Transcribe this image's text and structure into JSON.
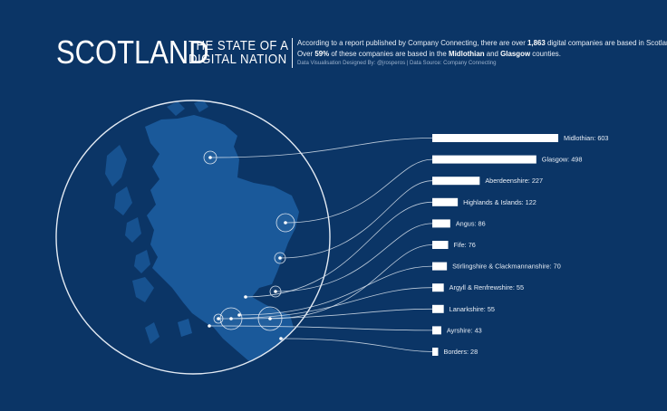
{
  "header": {
    "title_main": "SCOTLAND",
    "title_sub_line1": "THE STATE OF A",
    "title_sub_line2": "DIGITAL NATION",
    "desc_line1_pre": "According to a report published by Company Connecting, there are over ",
    "desc_line1_bold": "1,863",
    "desc_line1_post": " digital companies are based in Scotland.",
    "desc_line2_pre": "Over ",
    "desc_line2_bold1": "59%",
    "desc_line2_mid": " of these companies are based in the ",
    "desc_line2_bold2": "Midlothian",
    "desc_line2_and": " and ",
    "desc_line2_bold3": "Glasgow",
    "desc_line2_post": " counties.",
    "credit": "Data Visualisation Designed By: @jrosperos | Data Source: Company Connecting"
  },
  "chart_data": {
    "type": "bar",
    "title": "SCOTLAND THE STATE OF A DIGITAL NATION",
    "orientation": "horizontal",
    "categories": [
      "Midlothian",
      "Glasgow",
      "Aberdeenshire",
      "Highlands & Islands",
      "Angus",
      "Fife",
      "Stirlingshire & Clackmannanshire",
      "Argyll & Renfrewshire",
      "Lanarkshire",
      "Ayrshire",
      "Borders"
    ],
    "values": [
      603,
      498,
      227,
      122,
      86,
      76,
      70,
      55,
      55,
      43,
      28
    ],
    "labels": [
      "Midlothian: 603",
      "Glasgow: 498",
      "Aberdeenshire: 227",
      "Highlands & Islands: 122",
      "Angus: 86",
      "Fife: 76",
      "Stirlingshire & Clackmannanshire: 70",
      "Argyll & Renfrewshire: 55",
      "Lanarkshire: 55",
      "Ayrshire: 43",
      "Borders: 28"
    ],
    "legend": "none",
    "grid": false,
    "map": "Scotland",
    "colors": {
      "background": "#0b3566",
      "bar": "#ffffff",
      "land": "#1d5fa3",
      "connector": "#dbe4ef"
    }
  }
}
